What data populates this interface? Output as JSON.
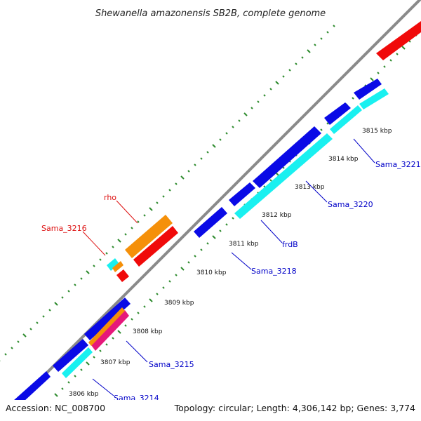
{
  "title": "Shewanella amazonensis SB2B, complete genome",
  "footer": {
    "accession": "Accession: NC_008700",
    "summary": "Topology: circular; Length: 4,306,142 bp; Genes: 3,774"
  },
  "colors": {
    "backbone": "#8a8a8a",
    "tick": "#2e8b2e",
    "gene_blue": "#0a0ae6",
    "gene_cyan": "#19f0f0",
    "gene_red": "#f00a0a",
    "gene_orange": "#f5900a",
    "gene_magenta": "#e6187a",
    "label_blue": "#0000c8",
    "label_red": "#dd1111"
  },
  "kbp_ticks": [
    {
      "label": "3806 kbp"
    },
    {
      "label": "3807 kbp"
    },
    {
      "label": "3808 kbp"
    },
    {
      "label": "3809 kbp"
    },
    {
      "label": "3810 kbp"
    },
    {
      "label": "3811 kbp"
    },
    {
      "label": "3812 kbp"
    },
    {
      "label": "3813 kbp"
    },
    {
      "label": "3814 kbp"
    },
    {
      "label": "3815 kbp"
    }
  ],
  "gene_labels": [
    {
      "name": "Sama_3214",
      "color": "label_blue"
    },
    {
      "name": "Sama_3215",
      "color": "label_blue"
    },
    {
      "name": "Sama_3216",
      "color": "label_red"
    },
    {
      "name": "rho",
      "color": "label_red"
    },
    {
      "name": "Sama_3218",
      "color": "label_blue"
    },
    {
      "name": "frdB",
      "color": "label_blue"
    },
    {
      "name": "Sama_3220",
      "color": "label_blue"
    },
    {
      "name": "Sama_3221",
      "color": "label_blue"
    }
  ]
}
